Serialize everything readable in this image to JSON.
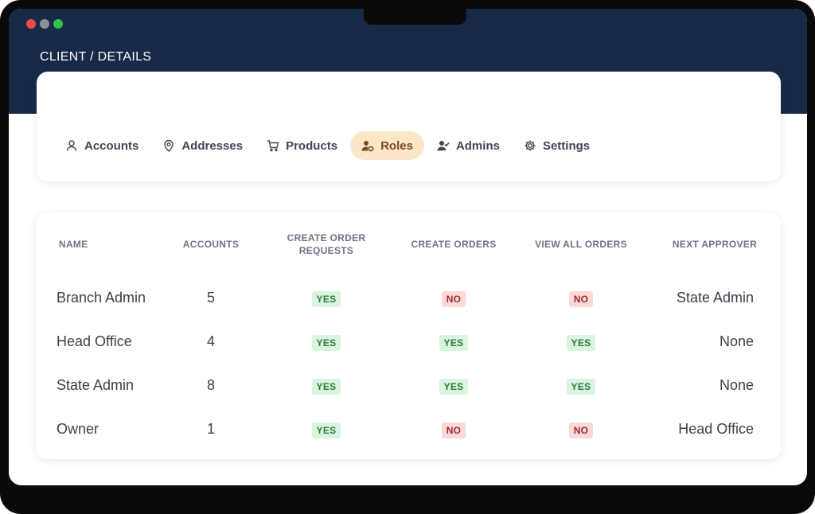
{
  "window": {
    "breadcrumb": "CLIENT / DETAILS"
  },
  "tabs": [
    {
      "label": "Accounts",
      "icon": "user-icon",
      "active": false
    },
    {
      "label": "Addresses",
      "icon": "map-pin-icon",
      "active": false
    },
    {
      "label": "Products",
      "icon": "cart-icon",
      "active": false
    },
    {
      "label": "Roles",
      "icon": "user-gear-icon",
      "active": true
    },
    {
      "label": "Admins",
      "icon": "user-check-icon",
      "active": false
    },
    {
      "label": "Settings",
      "icon": "gear-icon",
      "active": false
    }
  ],
  "table": {
    "headers": {
      "name": "NAME",
      "accounts": "ACCOUNTS",
      "create_order_requests": "CREATE ORDER REQUESTS",
      "create_orders": "CREATE ORDERS",
      "view_all_orders": "VIEW ALL ORDERS",
      "next_approver": "NEXT APPROVER"
    },
    "rows": [
      {
        "name": "Branch Admin",
        "accounts": "5",
        "create_order_requests": "YES",
        "create_orders": "NO",
        "view_all_orders": "NO",
        "next_approver": "State Admin"
      },
      {
        "name": "Head Office",
        "accounts": "4",
        "create_order_requests": "YES",
        "create_orders": "YES",
        "view_all_orders": "YES",
        "next_approver": "None"
      },
      {
        "name": "State Admin",
        "accounts": "8",
        "create_order_requests": "YES",
        "create_orders": "YES",
        "view_all_orders": "YES",
        "next_approver": "None"
      },
      {
        "name": "Owner",
        "accounts": "1",
        "create_order_requests": "YES",
        "create_orders": "NO",
        "view_all_orders": "NO",
        "next_approver": "Head Office"
      }
    ]
  },
  "colors": {
    "header_bg": "#172a47",
    "active_tab_bg": "#fbe6c8",
    "yes_bg": "#d9f5dd",
    "no_bg": "#fbd9d9"
  }
}
